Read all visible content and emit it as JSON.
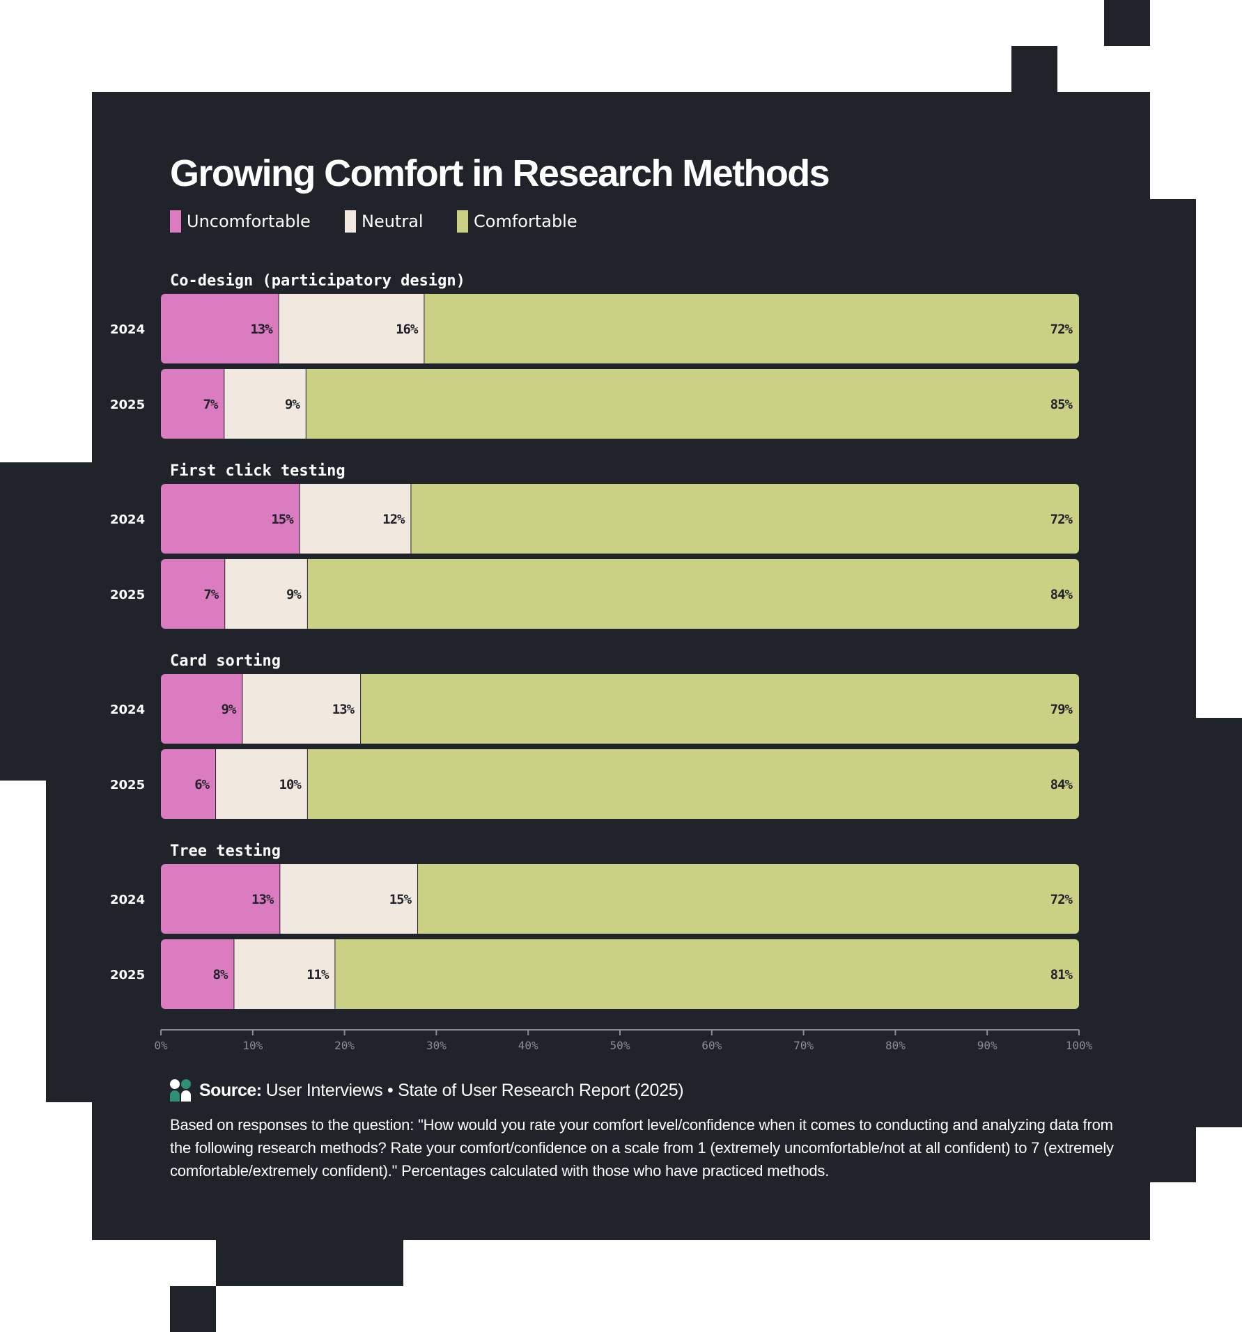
{
  "colors": {
    "uncomfortable": "#db7bc0",
    "neutral": "#f1e8df",
    "comfortable": "#cad185",
    "background": "#21232b",
    "axis": "#8a8d98"
  },
  "legend": {
    "uncomfortable": "Uncomfortable",
    "neutral": "Neutral",
    "comfortable": "Comfortable"
  },
  "chart_data": {
    "type": "bar",
    "orientation": "horizontal",
    "stacked": true,
    "title": "Growing Comfort in Research Methods",
    "xlim": [
      0,
      100
    ],
    "ticks": [
      "0%",
      "10%",
      "20%",
      "30%",
      "40%",
      "50%",
      "60%",
      "70%",
      "80%",
      "90%",
      "100%"
    ],
    "legend_position": "top-left",
    "grid": false,
    "series": [
      {
        "name": "Uncomfortable",
        "key": "uncomfortable"
      },
      {
        "name": "Neutral",
        "key": "neutral"
      },
      {
        "name": "Comfortable",
        "key": "comfortable"
      }
    ],
    "groups": [
      {
        "name": "Co-design (participatory design)",
        "rows": [
          {
            "year": "2024",
            "values": [
              13,
              16,
              72
            ]
          },
          {
            "year": "2025",
            "values": [
              7,
              9,
              85
            ]
          }
        ]
      },
      {
        "name": "First click testing",
        "rows": [
          {
            "year": "2024",
            "values": [
              15,
              12,
              72
            ]
          },
          {
            "year": "2025",
            "values": [
              7,
              9,
              84
            ]
          }
        ]
      },
      {
        "name": "Card sorting",
        "rows": [
          {
            "year": "2024",
            "values": [
              9,
              13,
              79
            ]
          },
          {
            "year": "2025",
            "values": [
              6,
              10,
              84
            ]
          }
        ]
      },
      {
        "name": "Tree testing",
        "rows": [
          {
            "year": "2024",
            "values": [
              13,
              15,
              72
            ]
          },
          {
            "year": "2025",
            "values": [
              8,
              11,
              81
            ]
          }
        ]
      }
    ]
  },
  "source": {
    "label": "Source:",
    "text": "User Interviews • State of User Research Report (2025)",
    "note": "Based on responses to the question: \"How would you rate your comfort level/confidence when it comes to conducting and analyzing data from the following research methods? Rate your comfort/confidence on a scale from 1 (extremely uncomfortable/not at all confident) to 7 (extremely comfortable/extremely confident).\" Percentages calculated with those who have practiced methods."
  }
}
